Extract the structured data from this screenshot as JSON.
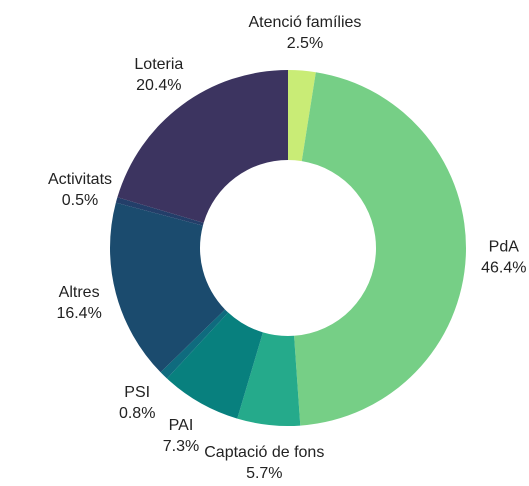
{
  "chart_data": {
    "type": "donut",
    "categories": [
      "Atenció famílies",
      "PdA",
      "Captació de fons",
      "PAI",
      "PSI",
      "Altres",
      "Activitats",
      "Loteria"
    ],
    "values": [
      2.5,
      46.4,
      5.7,
      7.3,
      0.8,
      16.4,
      0.5,
      20.4
    ],
    "value_labels": [
      "2.5%",
      "46.4%",
      "5.7%",
      "7.3%",
      "0.8%",
      "16.4%",
      "0.5%",
      "20.4%"
    ],
    "colors": [
      "#c9ec76",
      "#76cf86",
      "#25aa8b",
      "#08807e",
      "#0f6b7e",
      "#1b4b6e",
      "#233e69",
      "#3c3460"
    ]
  }
}
